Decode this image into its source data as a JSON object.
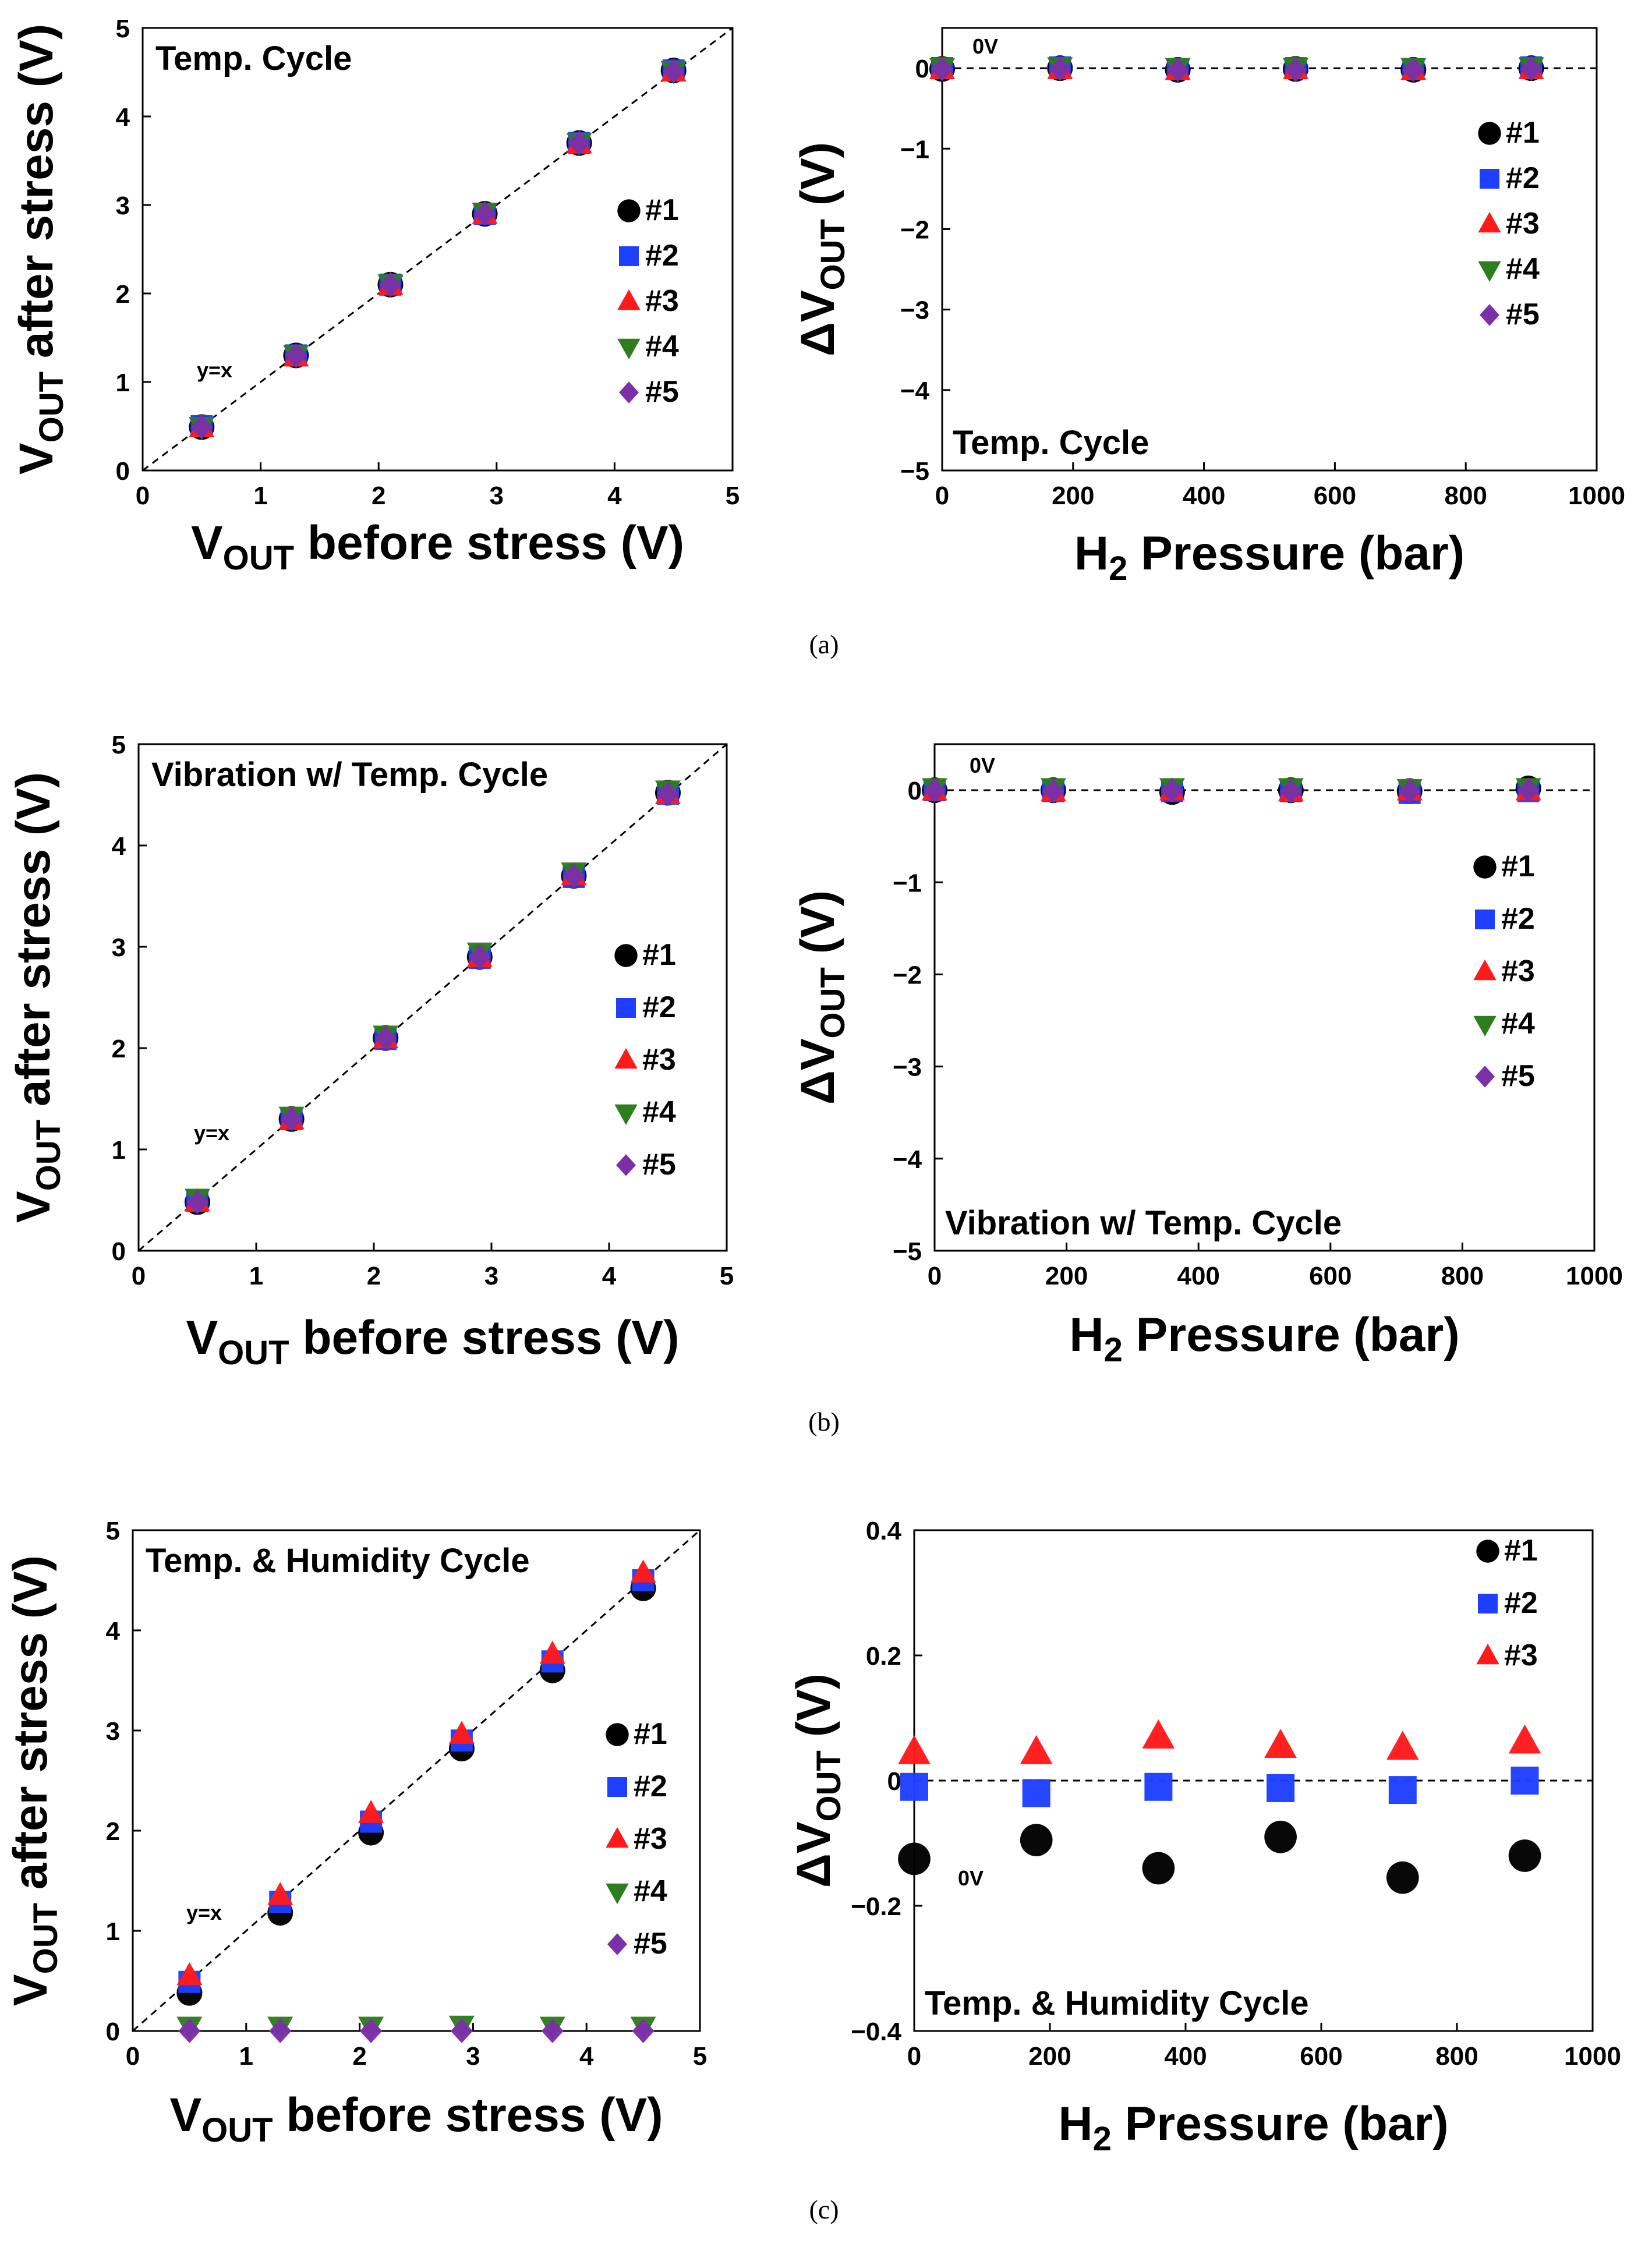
{
  "colors": {
    "s1": "#000000",
    "s2": "#1f3fff",
    "s3": "#ff1a1a",
    "s4": "#2e7d1f",
    "s5": "#7b2fa8",
    "frame": "#000000",
    "refline": "#000000"
  },
  "legend": [
    "#1",
    "#2",
    "#3",
    "#4",
    "#5"
  ],
  "chart_data": [
    {
      "id": "a-left",
      "type": "scatter",
      "caption": "(a)",
      "title": "Temp. Cycle",
      "xlabel": {
        "main": "V",
        "sub": "OUT",
        "rest": " before stress (V)"
      },
      "ylabel": {
        "main": "V",
        "sub": "OUT",
        "rest": " after stress (V)"
      },
      "xlim": [
        0,
        5
      ],
      "ylim": [
        0,
        5
      ],
      "xticks": [
        "0",
        "1",
        "2",
        "3",
        "4",
        "5"
      ],
      "yticks": [
        "0",
        "1",
        "2",
        "3",
        "4",
        "5"
      ],
      "ref_label": "y=x",
      "legend_entries": [
        "#1",
        "#2",
        "#3",
        "#4",
        "#5"
      ],
      "series": [
        {
          "name": "#1",
          "marker": "circle",
          "x": [
            0.5,
            1.3,
            2.1,
            2.9,
            3.7,
            4.5
          ],
          "y": [
            0.49,
            1.3,
            2.1,
            2.9,
            3.7,
            4.52
          ]
        },
        {
          "name": "#2",
          "marker": "square",
          "x": [
            0.5,
            1.3,
            2.1,
            2.9,
            3.7,
            4.5
          ],
          "y": [
            0.5,
            1.3,
            2.1,
            2.9,
            3.7,
            4.52
          ]
        },
        {
          "name": "#3",
          "marker": "triangle-up",
          "x": [
            0.5,
            1.3,
            2.1,
            2.9,
            3.7,
            4.5
          ],
          "y": [
            0.48,
            1.28,
            2.09,
            2.89,
            3.69,
            4.5
          ]
        },
        {
          "name": "#4",
          "marker": "triangle-down",
          "x": [
            0.5,
            1.3,
            2.1,
            2.9,
            3.7,
            4.5
          ],
          "y": [
            0.5,
            1.31,
            2.11,
            2.92,
            3.71,
            4.52
          ]
        },
        {
          "name": "#5",
          "marker": "diamond",
          "x": [
            0.5,
            1.3,
            2.1,
            2.9,
            3.7,
            4.5
          ],
          "y": [
            0.49,
            1.3,
            2.1,
            2.9,
            3.7,
            4.51
          ]
        }
      ]
    },
    {
      "id": "a-right",
      "type": "scatter",
      "caption": "",
      "title": "Temp. Cycle",
      "xlabel": {
        "main": "H",
        "sub": "2",
        "rest": " Pressure (bar)"
      },
      "ylabel": {
        "main": "ΔV",
        "sub": "OUT",
        "rest": " (V)"
      },
      "xlim": [
        0,
        1000
      ],
      "ylim": [
        -5,
        0.5
      ],
      "xticks": [
        "0",
        "200",
        "400",
        "600",
        "800",
        "1000"
      ],
      "yticks": [
        "−5",
        "−4",
        "−3",
        "−2",
        "−1",
        "0"
      ],
      "ref_label": "0V",
      "legend_entries": [
        "#1",
        "#2",
        "#3",
        "#4",
        "#5"
      ],
      "series": [
        {
          "name": "#1",
          "marker": "circle",
          "x": [
            0,
            180,
            360,
            540,
            720,
            900
          ],
          "y": [
            -0.01,
            0.0,
            -0.02,
            -0.01,
            -0.02,
            0.0
          ]
        },
        {
          "name": "#2",
          "marker": "square",
          "x": [
            0,
            180,
            360,
            540,
            720,
            900
          ],
          "y": [
            0.0,
            0.01,
            -0.01,
            0.0,
            -0.01,
            0.01
          ]
        },
        {
          "name": "#3",
          "marker": "triangle-up",
          "x": [
            0,
            180,
            360,
            540,
            720,
            900
          ],
          "y": [
            -0.02,
            -0.02,
            -0.03,
            -0.02,
            -0.03,
            -0.02
          ]
        },
        {
          "name": "#4",
          "marker": "triangle-down",
          "x": [
            0,
            180,
            360,
            540,
            720,
            900
          ],
          "y": [
            0.01,
            0.02,
            0.01,
            0.01,
            0.01,
            0.02
          ]
        },
        {
          "name": "#5",
          "marker": "diamond",
          "x": [
            0,
            180,
            360,
            540,
            720,
            900
          ],
          "y": [
            -0.01,
            -0.01,
            -0.02,
            -0.02,
            -0.02,
            -0.01
          ]
        }
      ]
    },
    {
      "id": "b-left",
      "type": "scatter",
      "caption": "(b)",
      "title": "Vibration w/ Temp. Cycle",
      "xlabel": {
        "main": "V",
        "sub": "OUT",
        "rest": " before stress (V)"
      },
      "ylabel": {
        "main": "V",
        "sub": "OUT",
        "rest": " after stress (V)"
      },
      "xlim": [
        0,
        5
      ],
      "ylim": [
        0,
        5
      ],
      "xticks": [
        "0",
        "1",
        "2",
        "3",
        "4",
        "5"
      ],
      "yticks": [
        "0",
        "1",
        "2",
        "3",
        "4",
        "5"
      ],
      "ref_label": "y=x",
      "legend_entries": [
        "#1",
        "#2",
        "#3",
        "#4",
        "#5"
      ],
      "series": [
        {
          "name": "#1",
          "marker": "circle",
          "x": [
            0.5,
            1.3,
            2.1,
            2.9,
            3.7,
            4.5
          ],
          "y": [
            0.48,
            1.3,
            2.1,
            2.9,
            3.7,
            4.52
          ]
        },
        {
          "name": "#2",
          "marker": "square",
          "x": [
            0.5,
            1.3,
            2.1,
            2.9,
            3.7,
            4.5
          ],
          "y": [
            0.49,
            1.3,
            2.09,
            2.89,
            3.69,
            4.51
          ]
        },
        {
          "name": "#3",
          "marker": "triangle-up",
          "x": [
            0.5,
            1.3,
            2.1,
            2.9,
            3.7,
            4.5
          ],
          "y": [
            0.48,
            1.29,
            2.09,
            2.89,
            3.7,
            4.5
          ]
        },
        {
          "name": "#4",
          "marker": "triangle-down",
          "x": [
            0.5,
            1.3,
            2.1,
            2.9,
            3.7,
            4.5
          ],
          "y": [
            0.52,
            1.33,
            2.13,
            2.95,
            3.74,
            4.55
          ]
        },
        {
          "name": "#5",
          "marker": "diamond",
          "x": [
            0.5,
            1.3,
            2.1,
            2.9,
            3.7,
            4.5
          ],
          "y": [
            0.48,
            1.3,
            2.1,
            2.9,
            3.7,
            4.51
          ]
        }
      ]
    },
    {
      "id": "b-right",
      "type": "scatter",
      "caption": "",
      "title": "Vibration w/ Temp. Cycle",
      "xlabel": {
        "main": "H",
        "sub": "2",
        "rest": " Pressure (bar)"
      },
      "ylabel": {
        "main": "ΔV",
        "sub": "OUT",
        "rest": " (V)"
      },
      "xlim": [
        0,
        1000
      ],
      "ylim": [
        -5,
        0.5
      ],
      "xticks": [
        "0",
        "200",
        "400",
        "600",
        "800",
        "1000"
      ],
      "yticks": [
        "−5",
        "−4",
        "−3",
        "−2",
        "−1",
        "0"
      ],
      "ref_label": "0V",
      "legend_entries": [
        "#1",
        "#2",
        "#3",
        "#4",
        "#5"
      ],
      "series": [
        {
          "name": "#1",
          "marker": "circle",
          "x": [
            0,
            180,
            360,
            540,
            720,
            900
          ],
          "y": [
            0.0,
            0.0,
            -0.02,
            0.0,
            -0.01,
            0.02
          ]
        },
        {
          "name": "#2",
          "marker": "square",
          "x": [
            0,
            180,
            360,
            540,
            720,
            900
          ],
          "y": [
            0.0,
            -0.01,
            -0.01,
            -0.01,
            -0.03,
            -0.01
          ]
        },
        {
          "name": "#3",
          "marker": "triangle-up",
          "x": [
            0,
            180,
            360,
            540,
            720,
            900
          ],
          "y": [
            -0.01,
            -0.02,
            -0.01,
            -0.02,
            -0.01,
            -0.01
          ]
        },
        {
          "name": "#4",
          "marker": "triangle-down",
          "x": [
            0,
            180,
            360,
            540,
            720,
            900
          ],
          "y": [
            0.03,
            0.03,
            0.03,
            0.03,
            0.02,
            0.03
          ]
        },
        {
          "name": "#5",
          "marker": "diamond",
          "x": [
            0,
            180,
            360,
            540,
            720,
            900
          ],
          "y": [
            0.0,
            -0.01,
            0.0,
            -0.01,
            -0.01,
            0.0
          ]
        }
      ]
    },
    {
      "id": "c-left",
      "type": "scatter",
      "caption": "(c)",
      "title": "Temp. & Humidity Cycle",
      "xlabel": {
        "main": "V",
        "sub": "OUT",
        "rest": " before stress (V)"
      },
      "ylabel": {
        "main": "V",
        "sub": "OUT",
        "rest": " after stress (V)"
      },
      "xlim": [
        0,
        5
      ],
      "ylim": [
        0,
        5
      ],
      "xticks": [
        "0",
        "1",
        "2",
        "3",
        "4",
        "5"
      ],
      "yticks": [
        "0",
        "1",
        "2",
        "3",
        "4",
        "5"
      ],
      "ref_label": "y=x",
      "legend_entries": [
        "#1",
        "#2",
        "#3",
        "#4",
        "#5"
      ],
      "series": [
        {
          "name": "#1",
          "marker": "circle",
          "x": [
            0.5,
            1.3,
            2.1,
            2.9,
            3.7,
            4.5
          ],
          "y": [
            0.38,
            1.18,
            1.98,
            2.82,
            3.6,
            4.42
          ]
        },
        {
          "name": "#2",
          "marker": "square",
          "x": [
            0.5,
            1.3,
            2.1,
            2.9,
            3.7,
            4.5
          ],
          "y": [
            0.49,
            1.29,
            2.09,
            2.9,
            3.69,
            4.5
          ]
        },
        {
          "name": "#3",
          "marker": "triangle-up",
          "x": [
            0.5,
            1.3,
            2.1,
            2.9,
            3.7,
            4.5
          ],
          "y": [
            0.55,
            1.35,
            2.17,
            2.96,
            3.76,
            4.57
          ]
        },
        {
          "name": "#4",
          "marker": "triangle-down",
          "x": [
            0.5,
            1.3,
            2.1,
            2.9,
            3.7,
            4.5
          ],
          "y": [
            0.05,
            0.05,
            0.05,
            0.06,
            0.05,
            0.05
          ]
        },
        {
          "name": "#5",
          "marker": "diamond",
          "x": [
            0.5,
            1.3,
            2.1,
            2.9,
            3.7,
            4.5
          ],
          "y": [
            0.0,
            0.0,
            0.0,
            0.0,
            0.0,
            0.0
          ]
        }
      ]
    },
    {
      "id": "c-right",
      "type": "scatter",
      "caption": "",
      "title": "Temp. & Humidity Cycle",
      "xlabel": {
        "main": "H",
        "sub": "2",
        "rest": " Pressure (bar)"
      },
      "ylabel": {
        "main": "ΔV",
        "sub": "OUT",
        "rest": " (V)"
      },
      "xlim": [
        0,
        1000
      ],
      "ylim": [
        -0.4,
        0.4
      ],
      "xticks": [
        "0",
        "200",
        "400",
        "600",
        "800",
        "1000"
      ],
      "yticks": [
        "−0.4",
        "−0.2",
        "0",
        "0.2",
        "0.4"
      ],
      "ref_label": "0V",
      "legend_entries": [
        "#1",
        "#2",
        "#3"
      ],
      "series": [
        {
          "name": "#1",
          "marker": "circle",
          "x": [
            0,
            180,
            360,
            540,
            720,
            900
          ],
          "y": [
            -0.125,
            -0.095,
            -0.14,
            -0.09,
            -0.155,
            -0.12
          ]
        },
        {
          "name": "#2",
          "marker": "square",
          "x": [
            0,
            180,
            360,
            540,
            720,
            900
          ],
          "y": [
            -0.01,
            -0.02,
            -0.01,
            -0.012,
            -0.015,
            0.0
          ]
        },
        {
          "name": "#3",
          "marker": "triangle-up",
          "x": [
            0,
            180,
            360,
            540,
            720,
            900
          ],
          "y": [
            0.045,
            0.045,
            0.07,
            0.055,
            0.052,
            0.062
          ]
        }
      ]
    }
  ]
}
